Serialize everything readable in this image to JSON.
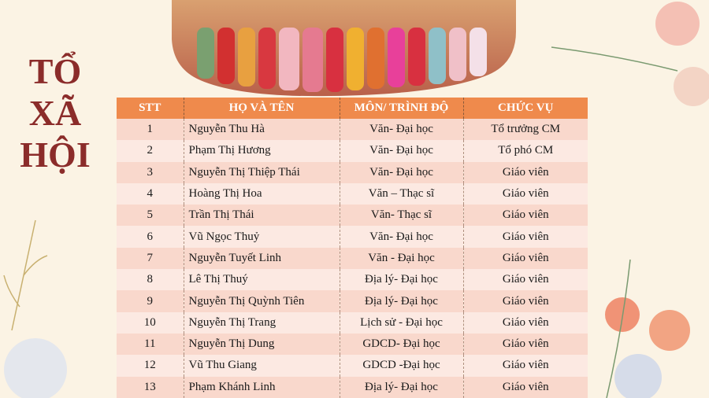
{
  "title": [
    "TỔ",
    "XÃ",
    "HỘI"
  ],
  "table": {
    "header": [
      "STT",
      "HỌ VÀ TÊN",
      "MÔN/ TRÌNH ĐỘ",
      "CHỨC VỤ"
    ],
    "rows": [
      [
        "1",
        "Nguyễn Thu Hà",
        "Văn- Đại học",
        "Tổ trưởng CM"
      ],
      [
        "2",
        "Phạm Thị Hương",
        "Văn- Đại học",
        "Tổ phó CM"
      ],
      [
        "3",
        "Nguyễn Thị Thiệp Thái",
        "Văn- Đại học",
        "Giáo viên"
      ],
      [
        "4",
        "Hoàng Thị Hoa",
        "Văn – Thạc sĩ",
        "Giáo viên"
      ],
      [
        "5",
        "Trần Thị Thái",
        "Văn- Thạc sĩ",
        "Giáo viên"
      ],
      [
        "6",
        "Vũ Ngọc Thuỷ",
        "Văn- Đại học",
        "Giáo viên"
      ],
      [
        "7",
        "Nguyễn Tuyết Linh",
        "Văn - Đại học",
        "Giáo viên"
      ],
      [
        "8",
        "Lê Thị Thuý",
        "Địa lý- Đại học",
        "Giáo viên"
      ],
      [
        "9",
        "Nguyễn Thị Quỳnh Tiên",
        "Địa lý- Đại học",
        "Giáo viên"
      ],
      [
        "10",
        "Nguyễn Thị Trang",
        "Lịch sử - Đại học",
        "Giáo viên"
      ],
      [
        "11",
        "Nguyễn Thị Dung",
        "GDCD-  Đại học",
        "Giáo viên"
      ],
      [
        "12",
        "Vũ Thu Giang",
        "GDCD -Đại học",
        "Giáo viên"
      ],
      [
        "13",
        "Phạm Khánh Linh",
        "Địa lý- Đại học",
        "Giáo viên"
      ]
    ]
  }
}
